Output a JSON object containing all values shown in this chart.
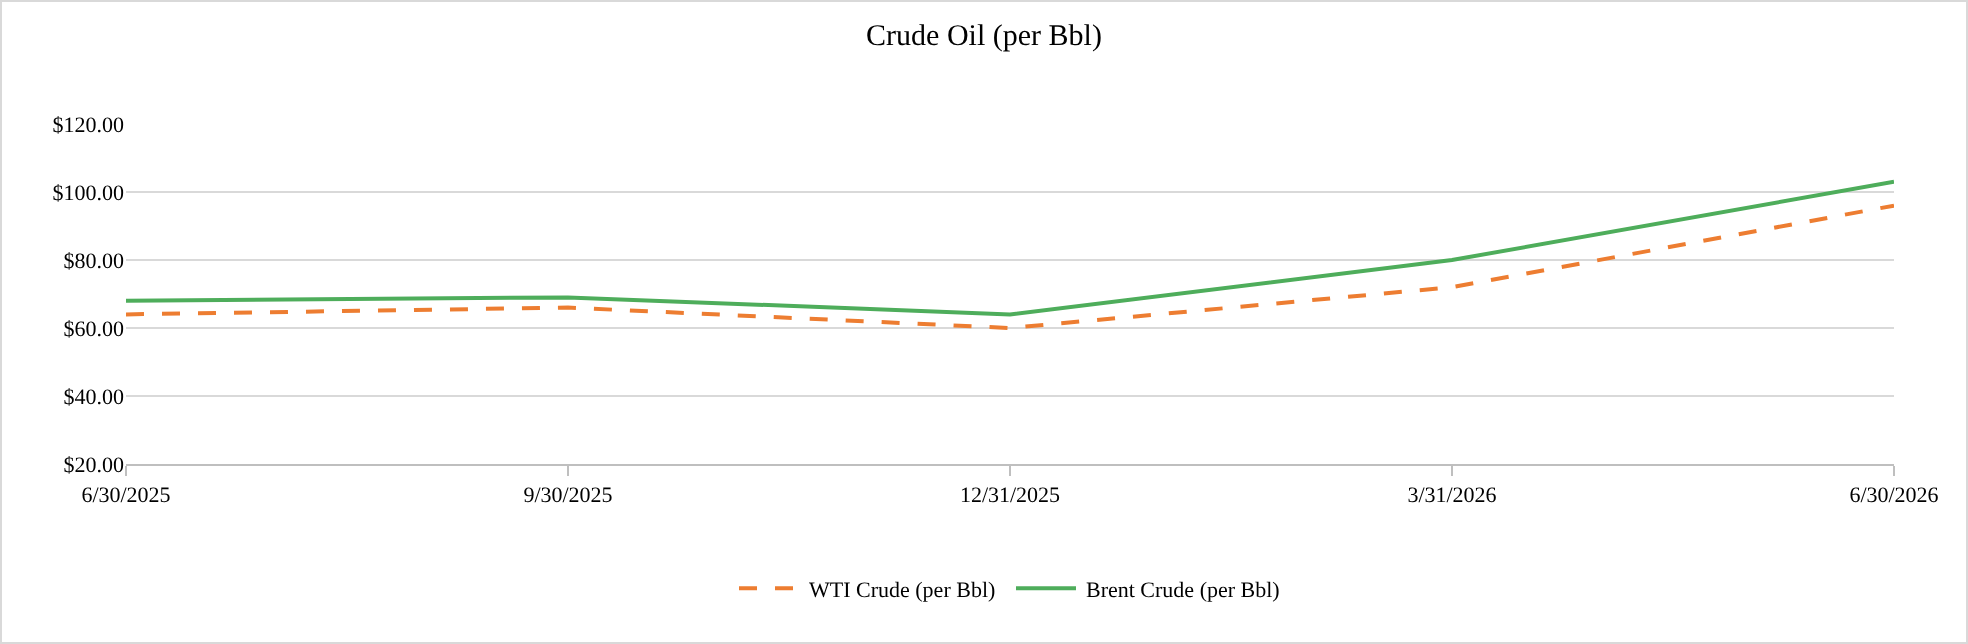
{
  "chart_data": {
    "type": "line",
    "title": "Crude Oil (per Bbl)",
    "categories": [
      "6/30/2025",
      "9/30/2025",
      "12/31/2025",
      "3/31/2026",
      "6/30/2026"
    ],
    "series": [
      {
        "name": "WTI Crude (per Bbl)",
        "color": "#ed7d31",
        "line_style": "dashed",
        "values": [
          64,
          66,
          60,
          72,
          96
        ]
      },
      {
        "name": "Brent Crude (per Bbl)",
        "color": "#4ead5b",
        "line_style": "solid",
        "values": [
          68,
          69,
          64,
          80,
          103
        ]
      }
    ],
    "ylim": [
      20,
      120
    ],
    "yticks": [
      {
        "value": 20,
        "label": "$20.00"
      },
      {
        "value": 40,
        "label": "$40.00"
      },
      {
        "value": 60,
        "label": "$60.00"
      },
      {
        "value": 80,
        "label": "$80.00"
      },
      {
        "value": 100,
        "label": "$100.00"
      },
      {
        "value": 120,
        "label": "$120.00"
      }
    ],
    "grid": "y",
    "legend": "bottom",
    "marker": "none"
  }
}
